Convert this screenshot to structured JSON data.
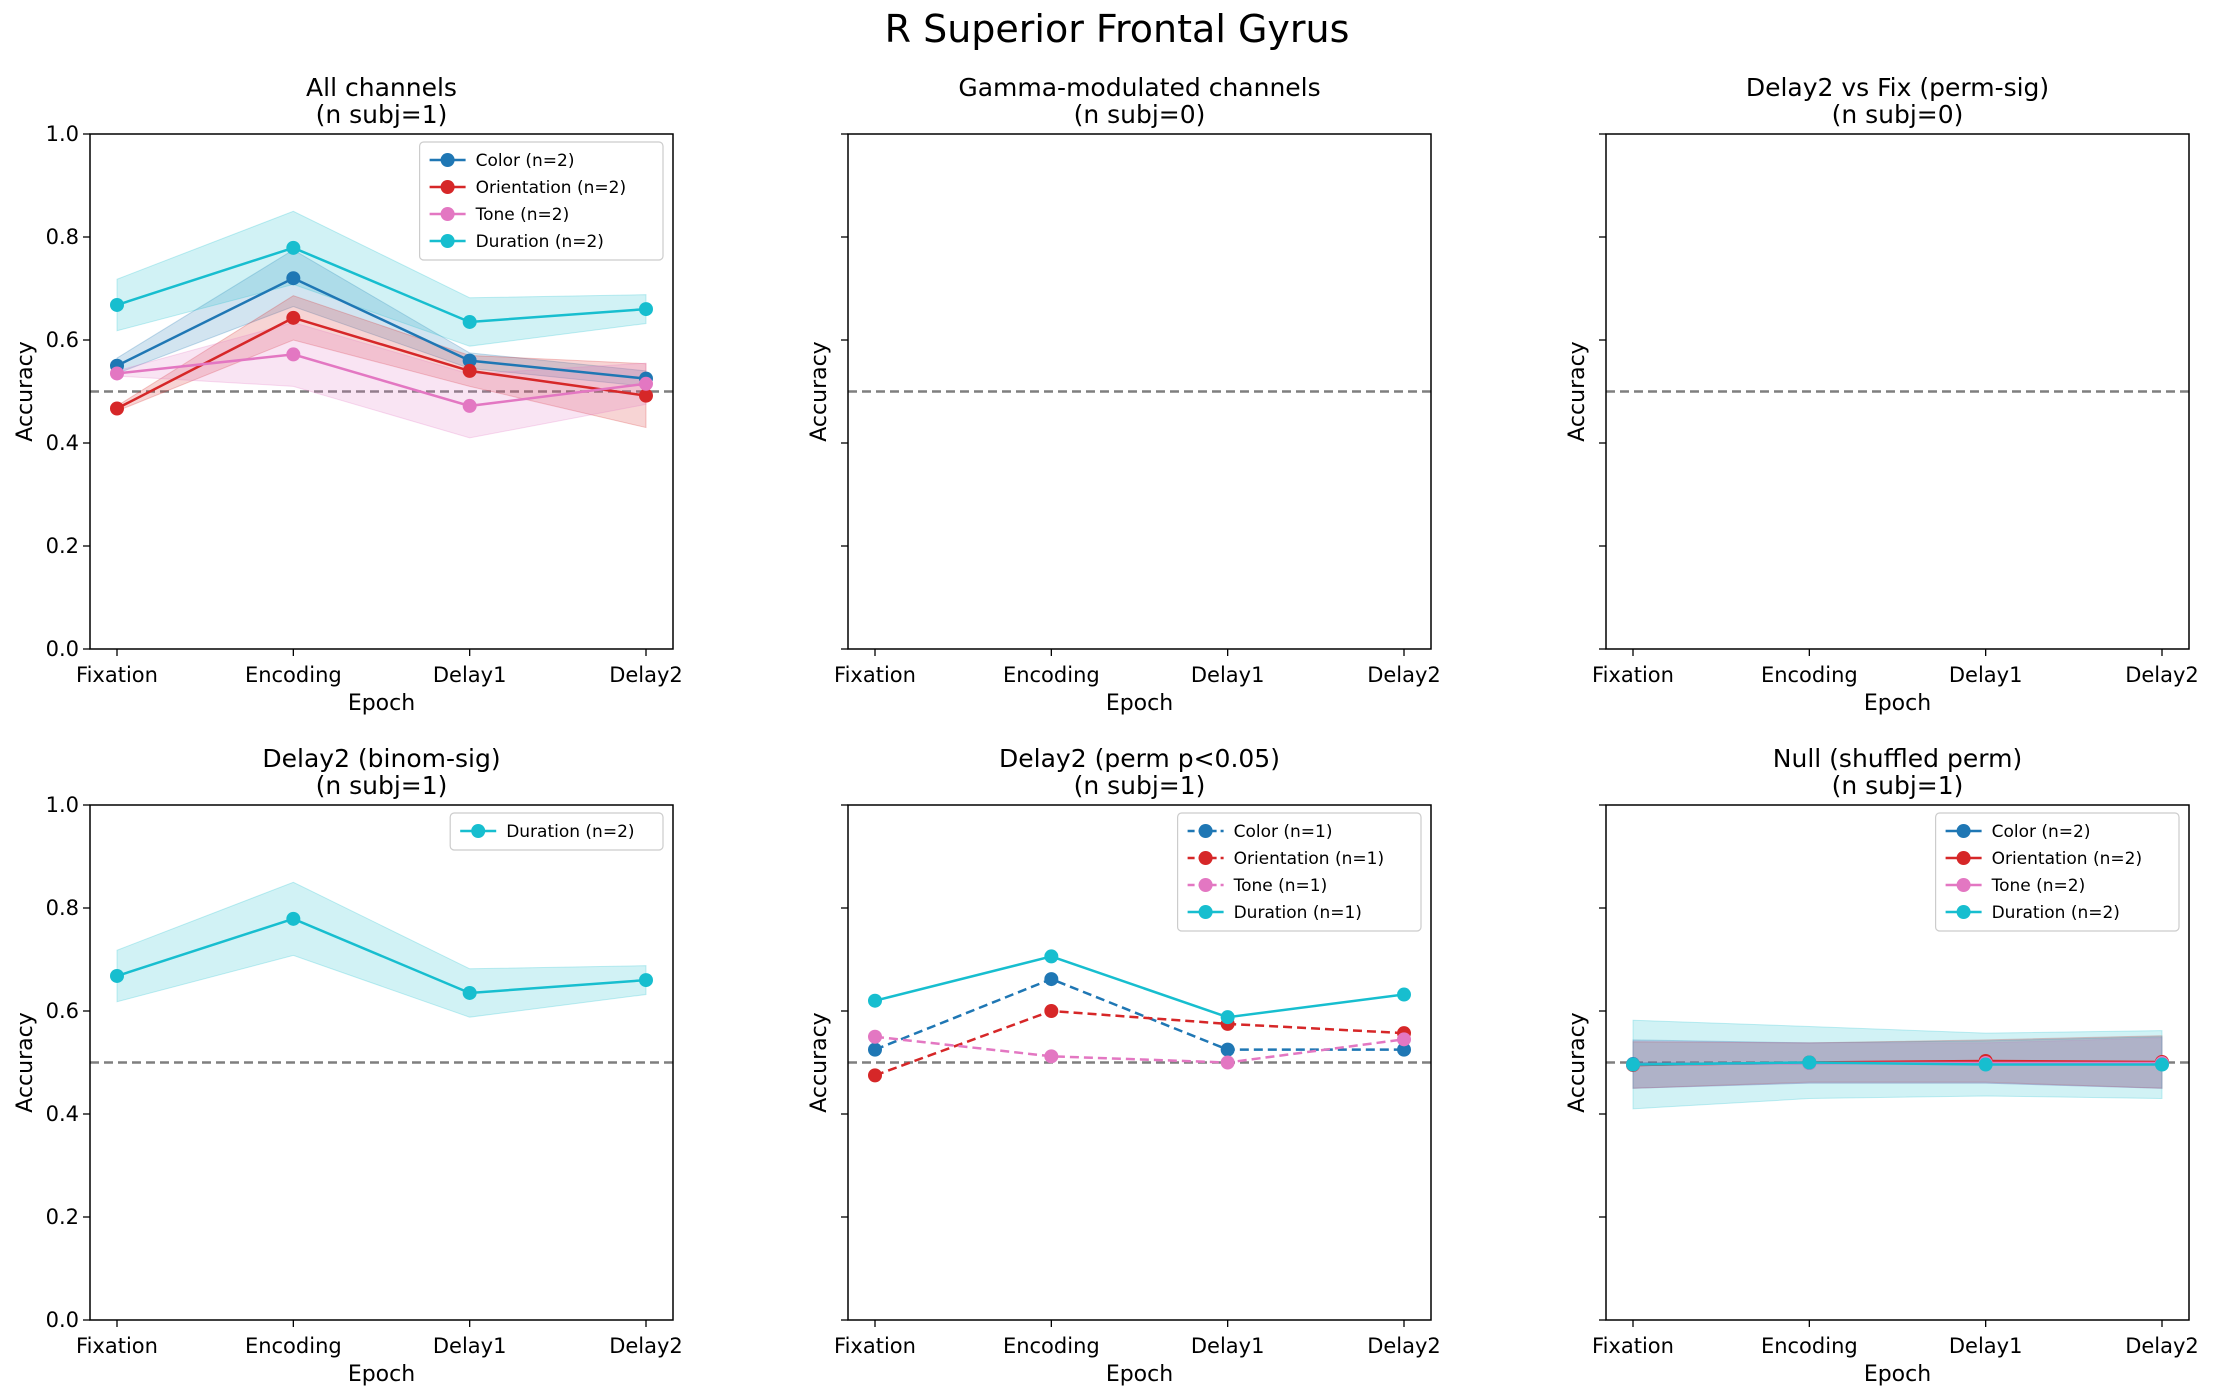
{
  "figure": {
    "title": "R Superior Frontal Gyrus"
  },
  "colors": {
    "Color": "#1f77b4",
    "Orientation": "#d62728",
    "Tone": "#e377c2",
    "Duration": "#17becf",
    "chance": "#7f7f7f"
  },
  "chart_data": [
    {
      "type": "line",
      "title": "All channels\n(n subj=1)",
      "xlabel": "Epoch",
      "ylabel": "Accuracy",
      "categories": [
        "Fixation",
        "Encoding",
        "Delay1",
        "Delay2"
      ],
      "ylim": [
        0,
        1
      ],
      "yticks": [
        "0.0",
        "0.2",
        "0.4",
        "0.6",
        "0.8",
        "1.0"
      ],
      "show_ytick_labels": true,
      "chance": 0.5,
      "legend": "top-right",
      "series": [
        {
          "key": "Color",
          "name": "Color (n=2)",
          "dashed": false,
          "values": [
            0.55,
            0.72,
            0.56,
            0.525
          ],
          "lower": [
            0.535,
            0.665,
            0.545,
            0.51
          ],
          "upper": [
            0.565,
            0.775,
            0.575,
            0.54
          ]
        },
        {
          "key": "Orientation",
          "name": "Orientation (n=2)",
          "dashed": false,
          "values": [
            0.467,
            0.643,
            0.54,
            0.492
          ],
          "lower": [
            0.462,
            0.6,
            0.51,
            0.43
          ],
          "upper": [
            0.472,
            0.686,
            0.57,
            0.554
          ]
        },
        {
          "key": "Tone",
          "name": "Tone (n=2)",
          "dashed": false,
          "values": [
            0.535,
            0.572,
            0.472,
            0.515
          ],
          "lower": [
            0.53,
            0.51,
            0.41,
            0.475
          ],
          "upper": [
            0.54,
            0.634,
            0.534,
            0.555
          ]
        },
        {
          "key": "Duration",
          "name": "Duration (n=2)",
          "dashed": false,
          "values": [
            0.668,
            0.779,
            0.635,
            0.66
          ],
          "lower": [
            0.618,
            0.708,
            0.588,
            0.632
          ],
          "upper": [
            0.718,
            0.85,
            0.682,
            0.688
          ]
        }
      ]
    },
    {
      "type": "line",
      "title": "Gamma-modulated channels\n(n subj=0)",
      "xlabel": "Epoch",
      "ylabel": "Accuracy",
      "categories": [
        "Fixation",
        "Encoding",
        "Delay1",
        "Delay2"
      ],
      "ylim": [
        0,
        1
      ],
      "yticks": [
        "0.0",
        "0.2",
        "0.4",
        "0.6",
        "0.8",
        "1.0"
      ],
      "show_ytick_labels": false,
      "chance": 0.5,
      "series": []
    },
    {
      "type": "line",
      "title": "Delay2 vs Fix (perm-sig)\n(n subj=0)",
      "xlabel": "Epoch",
      "ylabel": "Accuracy",
      "categories": [
        "Fixation",
        "Encoding",
        "Delay1",
        "Delay2"
      ],
      "ylim": [
        0,
        1
      ],
      "yticks": [
        "0.0",
        "0.2",
        "0.4",
        "0.6",
        "0.8",
        "1.0"
      ],
      "show_ytick_labels": false,
      "chance": 0.5,
      "series": []
    },
    {
      "type": "line",
      "title": "Delay2 (binom-sig)\n(n subj=1)",
      "xlabel": "Epoch",
      "ylabel": "Accuracy",
      "categories": [
        "Fixation",
        "Encoding",
        "Delay1",
        "Delay2"
      ],
      "ylim": [
        0,
        1
      ],
      "yticks": [
        "0.0",
        "0.2",
        "0.4",
        "0.6",
        "0.8",
        "1.0"
      ],
      "show_ytick_labels": true,
      "chance": 0.5,
      "legend": "top-right",
      "series": [
        {
          "key": "Duration",
          "name": "Duration (n=2)",
          "dashed": false,
          "values": [
            0.668,
            0.779,
            0.635,
            0.66
          ],
          "lower": [
            0.618,
            0.708,
            0.588,
            0.632
          ],
          "upper": [
            0.718,
            0.85,
            0.682,
            0.688
          ]
        }
      ]
    },
    {
      "type": "line",
      "title": "Delay2 (perm p<0.05)\n(n subj=1)",
      "xlabel": "Epoch",
      "ylabel": "Accuracy",
      "categories": [
        "Fixation",
        "Encoding",
        "Delay1",
        "Delay2"
      ],
      "ylim": [
        0,
        1
      ],
      "yticks": [
        "0.0",
        "0.2",
        "0.4",
        "0.6",
        "0.8",
        "1.0"
      ],
      "show_ytick_labels": false,
      "chance": 0.5,
      "legend": "top-right",
      "series": [
        {
          "key": "Color",
          "name": "Color (n=1)",
          "dashed": true,
          "values": [
            0.525,
            0.662,
            0.525,
            0.525
          ]
        },
        {
          "key": "Orientation",
          "name": "Orientation (n=1)",
          "dashed": true,
          "values": [
            0.475,
            0.6,
            0.575,
            0.557
          ]
        },
        {
          "key": "Tone",
          "name": "Tone (n=1)",
          "dashed": true,
          "values": [
            0.55,
            0.512,
            0.5,
            0.545
          ]
        },
        {
          "key": "Duration",
          "name": "Duration (n=1)",
          "dashed": false,
          "values": [
            0.62,
            0.706,
            0.588,
            0.632
          ]
        }
      ]
    },
    {
      "type": "line",
      "title": "Null (shuffled perm)\n(n subj=1)",
      "xlabel": "Epoch",
      "ylabel": "Accuracy",
      "categories": [
        "Fixation",
        "Encoding",
        "Delay1",
        "Delay2"
      ],
      "ylim": [
        0,
        1
      ],
      "yticks": [
        "0.0",
        "0.2",
        "0.4",
        "0.6",
        "0.8",
        "1.0"
      ],
      "show_ytick_labels": false,
      "chance": 0.5,
      "legend": "top-right",
      "series": [
        {
          "key": "Color",
          "name": "Color (n=2)",
          "dashed": false,
          "values": [
            0.497,
            0.499,
            0.501,
            0.5
          ],
          "lower": [
            0.45,
            0.46,
            0.46,
            0.45
          ],
          "upper": [
            0.544,
            0.538,
            0.542,
            0.55
          ]
        },
        {
          "key": "Orientation",
          "name": "Orientation (n=2)",
          "dashed": false,
          "values": [
            0.495,
            0.5,
            0.503,
            0.501
          ],
          "lower": [
            0.45,
            0.462,
            0.462,
            0.45
          ],
          "upper": [
            0.54,
            0.538,
            0.544,
            0.552
          ]
        },
        {
          "key": "Tone",
          "name": "Tone (n=2)",
          "dashed": false,
          "values": [
            0.496,
            0.499,
            0.499,
            0.499
          ],
          "lower": [
            0.45,
            0.46,
            0.46,
            0.45
          ],
          "upper": [
            0.542,
            0.538,
            0.538,
            0.548
          ]
        },
        {
          "key": "Duration",
          "name": "Duration (n=2)",
          "dashed": false,
          "values": [
            0.496,
            0.5,
            0.496,
            0.496
          ],
          "lower": [
            0.41,
            0.43,
            0.435,
            0.43
          ],
          "upper": [
            0.582,
            0.57,
            0.557,
            0.562
          ]
        }
      ]
    }
  ]
}
